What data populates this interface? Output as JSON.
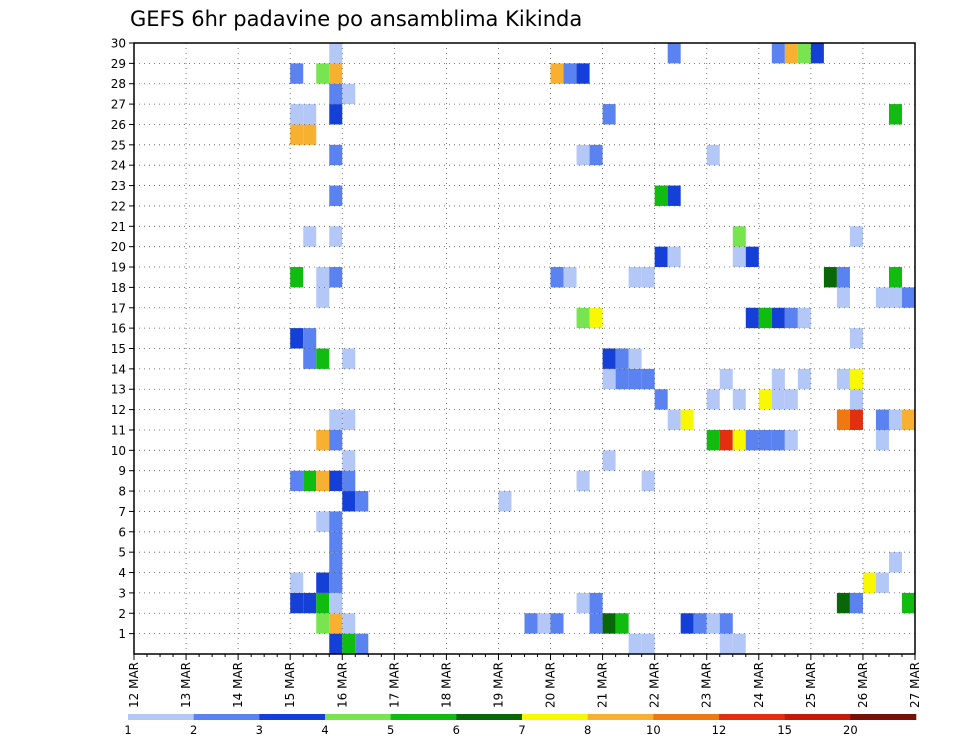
{
  "chart_data": {
    "type": "heatmap",
    "title": "GEFS 6hr padavine po ansamblima Kikinda",
    "y_categories": [
      "1",
      "2",
      "3",
      "4",
      "5",
      "6",
      "7",
      "8",
      "9",
      "10",
      "11",
      "12",
      "13",
      "14",
      "15",
      "16",
      "17",
      "18",
      "19",
      "20",
      "21",
      "22",
      "23",
      "24",
      "25",
      "26",
      "27",
      "28",
      "29",
      "30"
    ],
    "x_ticks": [
      "12 MAR",
      "13 MAR",
      "14 MAR",
      "15 MAR",
      "16 MAR",
      "17 MAR",
      "18 MAR",
      "19 MAR",
      "20 MAR",
      "21 MAR",
      "22 MAR",
      "23 MAR",
      "24 MAR",
      "25 MAR",
      "26 MAR",
      "27 MAR"
    ],
    "x_range": [
      12,
      27
    ],
    "y_range": [
      0,
      30
    ],
    "grid": true,
    "colorbar": {
      "labels": [
        "1",
        "2",
        "3",
        "4",
        "5",
        "6",
        "7",
        "8",
        "10",
        "12",
        "15",
        "20"
      ],
      "colors": [
        "#b4c8f8",
        "#5a82f0",
        "#1440d8",
        "#78e450",
        "#10bc10",
        "#086808",
        "#f8f800",
        "#f8b030",
        "#f07810",
        "#e03010",
        "#c81808",
        "#781008"
      ]
    },
    "cells": [
      {
        "x": 15.875,
        "y": 0,
        "lvl": 2
      },
      {
        "x": 16.125,
        "y": 0,
        "lvl": 4
      },
      {
        "x": 16.375,
        "y": 0,
        "lvl": 1
      },
      {
        "x": 21.625,
        "y": 0,
        "lvl": 0
      },
      {
        "x": 21.875,
        "y": 0,
        "lvl": 0
      },
      {
        "x": 23.375,
        "y": 0,
        "lvl": 0
      },
      {
        "x": 23.625,
        "y": 0,
        "lvl": 0
      },
      {
        "x": 15.625,
        "y": 1,
        "lvl": 3
      },
      {
        "x": 15.875,
        "y": 1,
        "lvl": 7
      },
      {
        "x": 16.125,
        "y": 1,
        "lvl": 0
      },
      {
        "x": 19.625,
        "y": 1,
        "lvl": 1
      },
      {
        "x": 19.875,
        "y": 1,
        "lvl": 0
      },
      {
        "x": 20.125,
        "y": 1,
        "lvl": 1
      },
      {
        "x": 20.875,
        "y": 1,
        "lvl": 1
      },
      {
        "x": 21.125,
        "y": 1,
        "lvl": 5
      },
      {
        "x": 21.375,
        "y": 1,
        "lvl": 4
      },
      {
        "x": 22.625,
        "y": 1,
        "lvl": 2
      },
      {
        "x": 22.875,
        "y": 1,
        "lvl": 1
      },
      {
        "x": 23.125,
        "y": 1,
        "lvl": 0
      },
      {
        "x": 23.375,
        "y": 1,
        "lvl": 1
      },
      {
        "x": 15.125,
        "y": 2,
        "lvl": 2
      },
      {
        "x": 15.375,
        "y": 2,
        "lvl": 2
      },
      {
        "x": 15.625,
        "y": 2,
        "lvl": 4
      },
      {
        "x": 15.875,
        "y": 2,
        "lvl": 0
      },
      {
        "x": 20.625,
        "y": 2,
        "lvl": 0
      },
      {
        "x": 20.875,
        "y": 2,
        "lvl": 1
      },
      {
        "x": 25.625,
        "y": 2,
        "lvl": 5
      },
      {
        "x": 25.875,
        "y": 2,
        "lvl": 1
      },
      {
        "x": 26.875,
        "y": 2,
        "lvl": 4
      },
      {
        "x": 15.125,
        "y": 3,
        "lvl": 0
      },
      {
        "x": 15.625,
        "y": 3,
        "lvl": 2
      },
      {
        "x": 15.875,
        "y": 3,
        "lvl": 1
      },
      {
        "x": 26.125,
        "y": 3,
        "lvl": 6
      },
      {
        "x": 26.375,
        "y": 3,
        "lvl": 0
      },
      {
        "x": 15.875,
        "y": 4,
        "lvl": 1
      },
      {
        "x": 26.625,
        "y": 4,
        "lvl": 0
      },
      {
        "x": 15.875,
        "y": 5,
        "lvl": 1
      },
      {
        "x": 15.625,
        "y": 6,
        "lvl": 0
      },
      {
        "x": 15.875,
        "y": 6,
        "lvl": 1
      },
      {
        "x": 16.125,
        "y": 7,
        "lvl": 2
      },
      {
        "x": 16.375,
        "y": 7,
        "lvl": 1
      },
      {
        "x": 19.125,
        "y": 7,
        "lvl": 0
      },
      {
        "x": 15.125,
        "y": 8,
        "lvl": 1
      },
      {
        "x": 15.375,
        "y": 8,
        "lvl": 4
      },
      {
        "x": 15.625,
        "y": 8,
        "lvl": 7
      },
      {
        "x": 15.875,
        "y": 8,
        "lvl": 2
      },
      {
        "x": 16.125,
        "y": 8,
        "lvl": 1
      },
      {
        "x": 20.625,
        "y": 8,
        "lvl": 0
      },
      {
        "x": 21.875,
        "y": 8,
        "lvl": 0
      },
      {
        "x": 16.125,
        "y": 9,
        "lvl": 0
      },
      {
        "x": 21.125,
        "y": 9,
        "lvl": 0
      },
      {
        "x": 15.625,
        "y": 10,
        "lvl": 7
      },
      {
        "x": 15.875,
        "y": 10,
        "lvl": 1
      },
      {
        "x": 23.125,
        "y": 10,
        "lvl": 4
      },
      {
        "x": 23.375,
        "y": 10,
        "lvl": 9
      },
      {
        "x": 23.625,
        "y": 10,
        "lvl": 6
      },
      {
        "x": 23.875,
        "y": 10,
        "lvl": 1
      },
      {
        "x": 24.125,
        "y": 10,
        "lvl": 1
      },
      {
        "x": 24.375,
        "y": 10,
        "lvl": 1
      },
      {
        "x": 24.625,
        "y": 10,
        "lvl": 0
      },
      {
        "x": 26.375,
        "y": 10,
        "lvl": 0
      },
      {
        "x": 15.875,
        "y": 11,
        "lvl": 0
      },
      {
        "x": 16.125,
        "y": 11,
        "lvl": 0
      },
      {
        "x": 22.375,
        "y": 11,
        "lvl": 0
      },
      {
        "x": 22.625,
        "y": 11,
        "lvl": 6
      },
      {
        "x": 25.625,
        "y": 11,
        "lvl": 8
      },
      {
        "x": 25.875,
        "y": 11,
        "lvl": 9
      },
      {
        "x": 26.375,
        "y": 11,
        "lvl": 1
      },
      {
        "x": 26.625,
        "y": 11,
        "lvl": 0
      },
      {
        "x": 26.875,
        "y": 11,
        "lvl": 7
      },
      {
        "x": 22.125,
        "y": 12,
        "lvl": 1
      },
      {
        "x": 23.125,
        "y": 12,
        "lvl": 0
      },
      {
        "x": 23.625,
        "y": 12,
        "lvl": 0
      },
      {
        "x": 24.125,
        "y": 12,
        "lvl": 6
      },
      {
        "x": 24.375,
        "y": 12,
        "lvl": 0
      },
      {
        "x": 24.625,
        "y": 12,
        "lvl": 0
      },
      {
        "x": 25.875,
        "y": 12,
        "lvl": 0
      },
      {
        "x": 21.125,
        "y": 13,
        "lvl": 0
      },
      {
        "x": 21.375,
        "y": 13,
        "lvl": 1
      },
      {
        "x": 21.625,
        "y": 13,
        "lvl": 1
      },
      {
        "x": 21.875,
        "y": 13,
        "lvl": 1
      },
      {
        "x": 23.375,
        "y": 13,
        "lvl": 0
      },
      {
        "x": 24.375,
        "y": 13,
        "lvl": 0
      },
      {
        "x": 24.875,
        "y": 13,
        "lvl": 0
      },
      {
        "x": 25.625,
        "y": 13,
        "lvl": 0
      },
      {
        "x": 25.875,
        "y": 13,
        "lvl": 6
      },
      {
        "x": 15.375,
        "y": 14,
        "lvl": 1
      },
      {
        "x": 15.625,
        "y": 14,
        "lvl": 4
      },
      {
        "x": 16.125,
        "y": 14,
        "lvl": 0
      },
      {
        "x": 21.125,
        "y": 14,
        "lvl": 2
      },
      {
        "x": 21.375,
        "y": 14,
        "lvl": 1
      },
      {
        "x": 21.625,
        "y": 14,
        "lvl": 0
      },
      {
        "x": 15.125,
        "y": 15,
        "lvl": 2
      },
      {
        "x": 15.375,
        "y": 15,
        "lvl": 1
      },
      {
        "x": 25.875,
        "y": 15,
        "lvl": 0
      },
      {
        "x": 20.625,
        "y": 16,
        "lvl": 3
      },
      {
        "x": 20.875,
        "y": 16,
        "lvl": 6
      },
      {
        "x": 23.875,
        "y": 16,
        "lvl": 2
      },
      {
        "x": 24.125,
        "y": 16,
        "lvl": 4
      },
      {
        "x": 24.375,
        "y": 16,
        "lvl": 2
      },
      {
        "x": 24.625,
        "y": 16,
        "lvl": 1
      },
      {
        "x": 24.875,
        "y": 16,
        "lvl": 0
      },
      {
        "x": 15.625,
        "y": 17,
        "lvl": 0
      },
      {
        "x": 25.625,
        "y": 17,
        "lvl": 0
      },
      {
        "x": 26.375,
        "y": 17,
        "lvl": 0
      },
      {
        "x": 26.625,
        "y": 17,
        "lvl": 0
      },
      {
        "x": 26.875,
        "y": 17,
        "lvl": 1
      },
      {
        "x": 15.125,
        "y": 18,
        "lvl": 4
      },
      {
        "x": 15.625,
        "y": 18,
        "lvl": 0
      },
      {
        "x": 15.875,
        "y": 18,
        "lvl": 1
      },
      {
        "x": 20.125,
        "y": 18,
        "lvl": 1
      },
      {
        "x": 20.375,
        "y": 18,
        "lvl": 0
      },
      {
        "x": 21.625,
        "y": 18,
        "lvl": 0
      },
      {
        "x": 21.875,
        "y": 18,
        "lvl": 0
      },
      {
        "x": 25.375,
        "y": 18,
        "lvl": 5
      },
      {
        "x": 25.625,
        "y": 18,
        "lvl": 1
      },
      {
        "x": 26.625,
        "y": 18,
        "lvl": 4
      },
      {
        "x": 22.125,
        "y": 19,
        "lvl": 2
      },
      {
        "x": 22.375,
        "y": 19,
        "lvl": 0
      },
      {
        "x": 23.625,
        "y": 19,
        "lvl": 0
      },
      {
        "x": 23.875,
        "y": 19,
        "lvl": 2
      },
      {
        "x": 15.375,
        "y": 20,
        "lvl": 0
      },
      {
        "x": 15.875,
        "y": 20,
        "lvl": 0
      },
      {
        "x": 23.625,
        "y": 20,
        "lvl": 3
      },
      {
        "x": 25.875,
        "y": 20,
        "lvl": 0
      },
      {
        "x": 22.125,
        "y": 22,
        "lvl": 4
      },
      {
        "x": 22.375,
        "y": 22,
        "lvl": 2
      },
      {
        "x": 15.875,
        "y": 22,
        "lvl": 1
      },
      {
        "x": 15.875,
        "y": 24,
        "lvl": 1
      },
      {
        "x": 20.625,
        "y": 24,
        "lvl": 0
      },
      {
        "x": 20.875,
        "y": 24,
        "lvl": 1
      },
      {
        "x": 23.125,
        "y": 24,
        "lvl": 0
      },
      {
        "x": 15.125,
        "y": 25,
        "lvl": 7
      },
      {
        "x": 15.375,
        "y": 25,
        "lvl": 7
      },
      {
        "x": 15.125,
        "y": 26,
        "lvl": 0
      },
      {
        "x": 15.375,
        "y": 26,
        "lvl": 0
      },
      {
        "x": 15.875,
        "y": 26,
        "lvl": 2
      },
      {
        "x": 21.125,
        "y": 26,
        "lvl": 1
      },
      {
        "x": 26.625,
        "y": 26,
        "lvl": 4
      },
      {
        "x": 15.875,
        "y": 27,
        "lvl": 1
      },
      {
        "x": 16.125,
        "y": 27,
        "lvl": 0
      },
      {
        "x": 15.125,
        "y": 28,
        "lvl": 1
      },
      {
        "x": 15.625,
        "y": 28,
        "lvl": 3
      },
      {
        "x": 15.875,
        "y": 28,
        "lvl": 7
      },
      {
        "x": 20.125,
        "y": 28,
        "lvl": 7
      },
      {
        "x": 20.375,
        "y": 28,
        "lvl": 1
      },
      {
        "x": 20.625,
        "y": 28,
        "lvl": 2
      },
      {
        "x": 15.875,
        "y": 29,
        "lvl": 0
      },
      {
        "x": 22.375,
        "y": 29,
        "lvl": 1
      },
      {
        "x": 24.375,
        "y": 29,
        "lvl": 1
      },
      {
        "x": 24.625,
        "y": 29,
        "lvl": 7
      },
      {
        "x": 24.875,
        "y": 29,
        "lvl": 3
      },
      {
        "x": 25.125,
        "y": 29,
        "lvl": 2
      }
    ]
  }
}
